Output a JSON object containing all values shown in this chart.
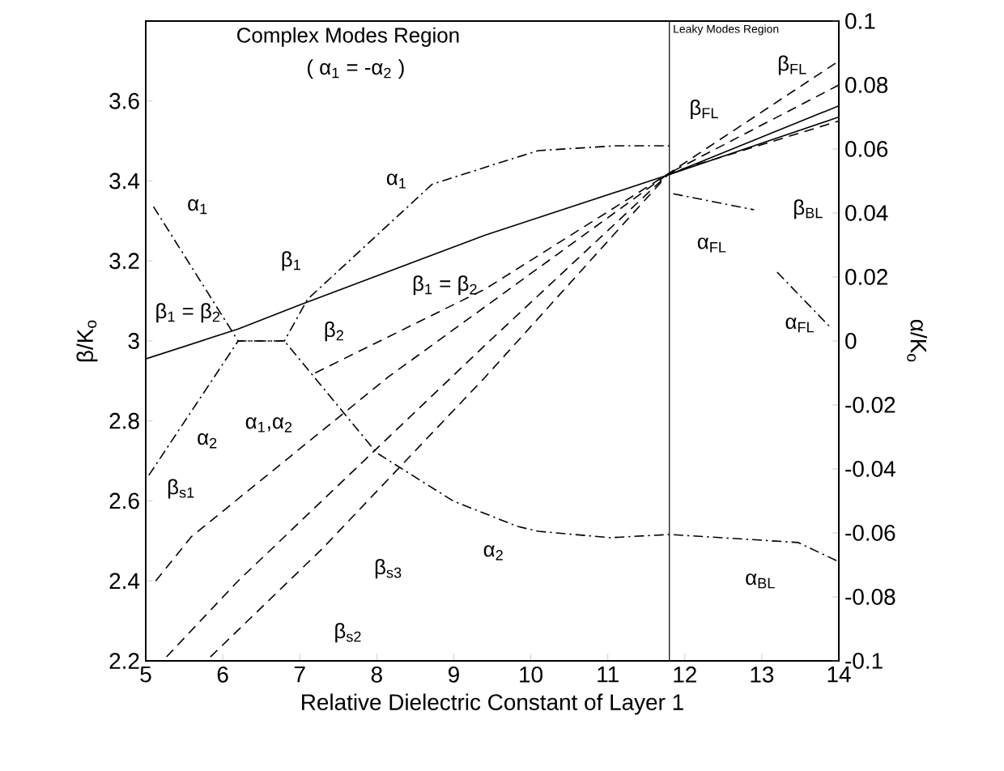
{
  "chart_data": {
    "type": "line",
    "xlabel": "Relative Dielectric Constant of Layer 1",
    "ylabel": "β/K$_{o}$",
    "y2label": "α/K$_{o}$",
    "xlim": [
      5,
      14
    ],
    "ylim": [
      2.2,
      3.8
    ],
    "y2lim": [
      -0.1,
      0.1
    ],
    "xticks": [
      5,
      6,
      7,
      8,
      9,
      10,
      11,
      12,
      13,
      14
    ],
    "yticks": [
      2.2,
      2.4,
      2.6,
      2.8,
      3,
      3.2,
      3.4,
      3.6
    ],
    "y2ticks": [
      -0.1,
      -0.08,
      -0.06,
      -0.04,
      -0.02,
      0,
      0.02,
      0.04,
      0.06,
      0.08,
      0.1
    ],
    "series": [
      {
        "color": "#000000",
        "line_style": "solid",
        "x": [
          5,
          6.2,
          7.0,
          9.41,
          11.8,
          14
        ],
        "values": [
          2.955,
          3.03,
          3.09,
          3.265,
          3.416,
          3.588
        ]
      },
      {
        "color": "#000000",
        "line_style": "solid",
        "x": [
          11.8,
          14
        ],
        "values": [
          3.416,
          3.56
        ]
      },
      {
        "color": "#000000",
        "line_style": "dashed",
        "x": [
          7.2,
          9.41,
          11.8,
          14
        ],
        "values": [
          2.92,
          3.13,
          3.42,
          3.55
        ]
      },
      {
        "color": "#000000",
        "line_style": "dashed",
        "x": [
          5.13,
          5.59,
          8.15,
          11.8,
          14
        ],
        "values": [
          2.4,
          2.51,
          2.91,
          3.42,
          3.64
        ]
      },
      {
        "color": "#000000",
        "line_style": "dashed",
        "x": [
          5.27,
          6.2,
          9.41,
          11.8,
          14
        ],
        "values": [
          2.21,
          2.4,
          2.99,
          3.42,
          3.7
        ]
      },
      {
        "color": "#000000",
        "line_style": "dashed",
        "x": [
          5.84,
          7.29,
          9.41,
          11.8
        ],
        "values": [
          2.21,
          2.48,
          2.91,
          3.42
        ]
      },
      {
        "color": "#000000",
        "line_style": "dashdot",
        "axis": "y2",
        "x": [
          5.1,
          6.2,
          6.8,
          7.1,
          8.36,
          8.72,
          9.83,
          10.1,
          11.1,
          11.8
        ],
        "values": [
          0.042,
          0,
          0,
          0.013,
          0.041,
          0.049,
          0.0575,
          0.0595,
          0.061,
          0.061
        ]
      },
      {
        "color": "#000000",
        "line_style": "dashdot",
        "axis": "y2",
        "x": [
          5.04,
          6.2,
          6.8,
          8.0,
          8.99,
          9.83,
          10.1,
          11.03,
          11.8,
          13.47,
          14
        ],
        "values": [
          -0.042,
          0,
          0,
          -0.035,
          -0.05,
          -0.058,
          -0.0595,
          -0.0615,
          -0.0605,
          -0.063,
          -0.069
        ]
      },
      {
        "color": "#000000",
        "line_style": "dashdot",
        "axis": "y2",
        "x": [
          11.85,
          12.9,
          13.05,
          13.2,
          13.9
        ],
        "values": [
          0.046,
          0.041,
          null,
          0.0215,
          0.004
        ]
      }
    ],
    "ref_lines": [
      {
        "axis": "x",
        "value": 11.8,
        "label": "Leaky Modes Region"
      }
    ],
    "annotations": [
      "Complex Modes Region",
      "( α$_{1}$ = -α$_{2}$ )",
      "α$_{1}$",
      "α$_{1}$",
      "β$_{1}$",
      "β$_{1}$ = β$_{2}$",
      "β$_{1}$ = β$_{2}$",
      "β$_{2}$",
      "α$_{1}$,α$_{2}$",
      "α$_{2}$",
      "β$_{s1}$",
      "β$_{s3}$",
      "β$_{s2}$",
      "α$_{2}$",
      "β$_{FL}$",
      "β$_{FL}$",
      "β$_{BL}$",
      "α$_{FL}$",
      "α$_{FL}$",
      "α$_{BL}$"
    ]
  }
}
